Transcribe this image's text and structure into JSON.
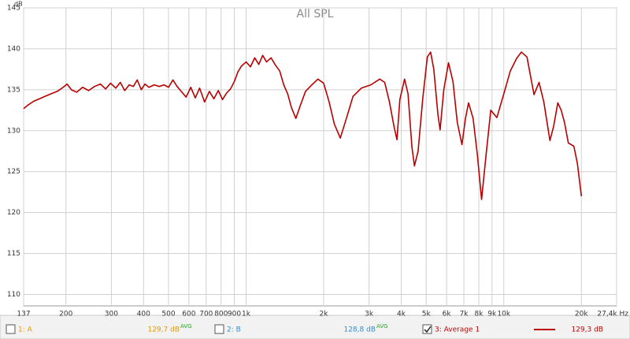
{
  "chart_data": {
    "type": "line",
    "title": "All SPL",
    "y_unit": "dB",
    "xscale": "log",
    "grid": true,
    "xlim": [
      137,
      27400
    ],
    "ylim": [
      108.6,
      145
    ],
    "xticks": [
      137,
      200,
      300,
      400,
      500,
      600,
      700,
      800,
      900,
      {
        "value": 1000,
        "label": "1k"
      },
      {
        "value": 2000,
        "label": "2k"
      },
      {
        "value": 3000,
        "label": "3k"
      },
      {
        "value": 4000,
        "label": "4k"
      },
      {
        "value": 5000,
        "label": "5k"
      },
      {
        "value": 6000,
        "label": "6k"
      },
      {
        "value": 7000,
        "label": "7k"
      },
      {
        "value": 8000,
        "label": "8k"
      },
      {
        "value": 9000,
        "label": "9k"
      },
      {
        "value": 10000,
        "label": "10k"
      },
      {
        "value": 20000,
        "label": "20k"
      },
      {
        "value": 27400,
        "label": "27,4k Hz"
      }
    ],
    "yticks": [
      110,
      115,
      120,
      125,
      130,
      135,
      140,
      145
    ],
    "x": [
      137,
      142,
      150,
      158,
      166,
      175,
      185,
      195,
      202,
      210,
      220,
      232,
      245,
      258,
      272,
      285,
      298,
      312,
      325,
      338,
      352,
      365,
      378,
      392,
      405,
      420,
      440,
      460,
      480,
      500,
      520,
      540,
      560,
      585,
      610,
      635,
      660,
      690,
      720,
      750,
      780,
      810,
      840,
      870,
      900,
      930,
      960,
      1000,
      1040,
      1080,
      1120,
      1160,
      1200,
      1250,
      1300,
      1350,
      1400,
      1450,
      1500,
      1560,
      1620,
      1700,
      1800,
      1900,
      2000,
      2100,
      2200,
      2320,
      2450,
      2600,
      2800,
      3050,
      3300,
      3450,
      3600,
      3750,
      3850,
      3950,
      4120,
      4250,
      4400,
      4500,
      4650,
      4850,
      5050,
      5200,
      5350,
      5550,
      5660,
      5850,
      6100,
      6350,
      6600,
      6880,
      7100,
      7300,
      7600,
      7900,
      8200,
      8500,
      8900,
      9400,
      10000,
      10600,
      11200,
      11700,
      12300,
      13100,
      13700,
      14300,
      15100,
      15600,
      16200,
      16700,
      17200,
      17800,
      18700,
      19300,
      20000
    ],
    "series": [
      {
        "color": "#b80000",
        "values": [
          132.7,
          133.1,
          133.6,
          133.9,
          134.2,
          134.5,
          134.8,
          135.3,
          135.7,
          135.0,
          134.7,
          135.3,
          134.9,
          135.4,
          135.7,
          135.1,
          135.8,
          135.2,
          135.9,
          134.9,
          135.6,
          135.4,
          136.2,
          135.0,
          135.7,
          135.3,
          135.6,
          135.4,
          135.6,
          135.3,
          136.2,
          135.4,
          134.8,
          134.1,
          135.3,
          134.0,
          135.2,
          133.5,
          134.8,
          133.9,
          134.9,
          133.8,
          134.6,
          135.1,
          136.0,
          137.2,
          137.9,
          138.4,
          137.8,
          138.9,
          138.1,
          139.2,
          138.4,
          138.9,
          138.0,
          137.3,
          135.6,
          134.5,
          132.8,
          131.5,
          133.0,
          134.8,
          135.6,
          136.3,
          135.8,
          133.5,
          130.8,
          129.1,
          131.5,
          134.2,
          135.2,
          135.6,
          136.3,
          135.9,
          133.5,
          130.5,
          128.9,
          133.8,
          136.3,
          134.5,
          128.0,
          125.7,
          127.5,
          134.0,
          139.0,
          139.6,
          137.5,
          132.0,
          130.1,
          135.0,
          138.3,
          136.0,
          131.0,
          128.3,
          131.5,
          133.4,
          131.5,
          127.0,
          121.6,
          126.5,
          132.5,
          131.6,
          134.5,
          137.3,
          138.8,
          139.6,
          139.0,
          134.4,
          135.9,
          133.5,
          128.8,
          130.5,
          133.4,
          132.5,
          131.0,
          128.5,
          128.1,
          126.0,
          122.0
        ]
      }
    ]
  },
  "legend_bar": [
    {
      "label": "1: A",
      "value": "129,7 dB",
      "suffix": "AVG",
      "color": "#e09a00",
      "checked": false
    },
    {
      "label": "2: B",
      "value": "128,8 dB",
      "suffix": "AVG",
      "color": "#2f8fd0",
      "checked": false
    },
    {
      "label": "3: Average 1",
      "value": "129,3 dB",
      "color": "#c00000",
      "checked": true
    }
  ],
  "suffix_color": "#22aa22"
}
